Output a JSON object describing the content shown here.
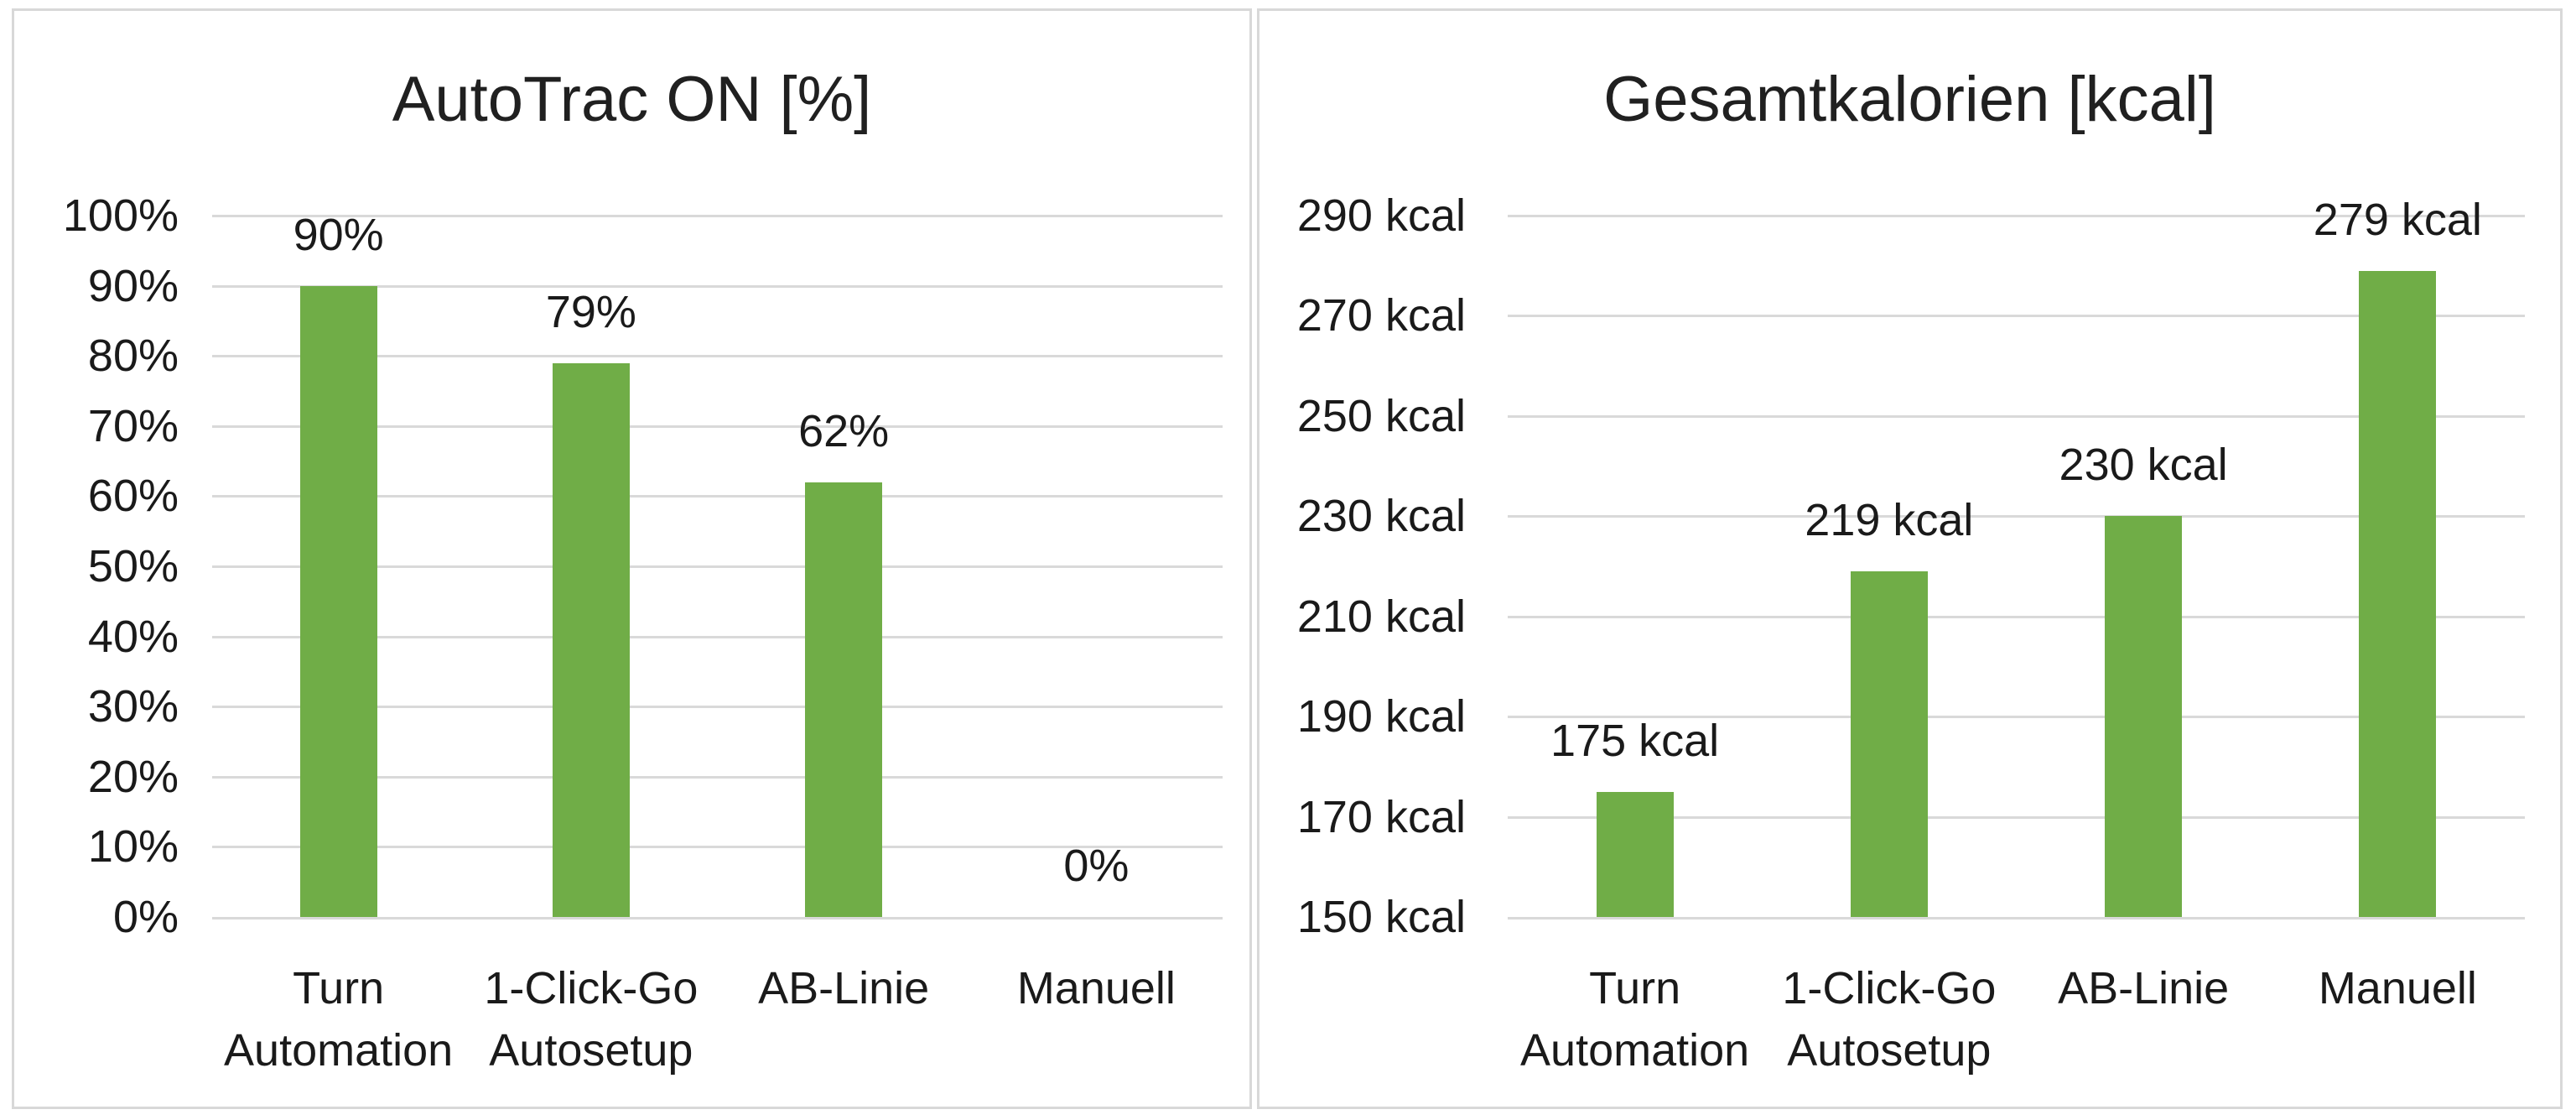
{
  "colors": {
    "bar_fill": "#70ad47",
    "gridline": "#d9d9d9",
    "panel_border": "#d8d8d8",
    "text": "#1a1a1a",
    "title_text": "#202020"
  },
  "chart_data": [
    {
      "type": "bar",
      "title": "AutoTrac ON [%]",
      "categories": [
        "Turn Automation",
        "1-Click-Go Autosetup",
        "AB-Linie",
        "Manuell"
      ],
      "category_lines": [
        [
          "Turn",
          "Automation"
        ],
        [
          "1-Click-Go",
          "Autosetup"
        ],
        [
          "AB-Linie"
        ],
        [
          "Manuell"
        ]
      ],
      "values": [
        90,
        79,
        62,
        0
      ],
      "value_labels": [
        "90%",
        "79%",
        "62%",
        "0%"
      ],
      "ylim": [
        0,
        100
      ],
      "ytick_step": 10,
      "yticks": [
        {
          "value": 100,
          "label": "100%"
        },
        {
          "value": 90,
          "label": "90%"
        },
        {
          "value": 80,
          "label": "80%"
        },
        {
          "value": 70,
          "label": "70%"
        },
        {
          "value": 60,
          "label": "60%"
        },
        {
          "value": 50,
          "label": "50%"
        },
        {
          "value": 40,
          "label": "40%"
        },
        {
          "value": 30,
          "label": "30%"
        },
        {
          "value": 20,
          "label": "20%"
        },
        {
          "value": 10,
          "label": "10%"
        },
        {
          "value": 0,
          "label": "0%"
        }
      ],
      "bar_color": "#70ad47",
      "grid": true,
      "xlabel": "",
      "ylabel": ""
    },
    {
      "type": "bar",
      "title": "Gesamtkalorien [kcal]",
      "categories": [
        "Turn Automation",
        "1-Click-Go Autosetup",
        "AB-Linie",
        "Manuell"
      ],
      "category_lines": [
        [
          "Turn",
          "Automation"
        ],
        [
          "1-Click-Go",
          "Autosetup"
        ],
        [
          "AB-Linie"
        ],
        [
          "Manuell"
        ]
      ],
      "values": [
        175,
        219,
        230,
        279
      ],
      "value_labels": [
        "175 kcal",
        "219 kcal",
        "230 kcal",
        "279 kcal"
      ],
      "ylim": [
        150,
        290
      ],
      "ytick_step": 20,
      "yticks": [
        {
          "value": 290,
          "label": "290 kcal"
        },
        {
          "value": 270,
          "label": "270 kcal"
        },
        {
          "value": 250,
          "label": "250 kcal"
        },
        {
          "value": 230,
          "label": "230 kcal"
        },
        {
          "value": 210,
          "label": "210 kcal"
        },
        {
          "value": 190,
          "label": "190 kcal"
        },
        {
          "value": 170,
          "label": "170 kcal"
        },
        {
          "value": 150,
          "label": "150 kcal"
        }
      ],
      "bar_color": "#70ad47",
      "grid": true,
      "xlabel": "",
      "ylabel": ""
    }
  ]
}
